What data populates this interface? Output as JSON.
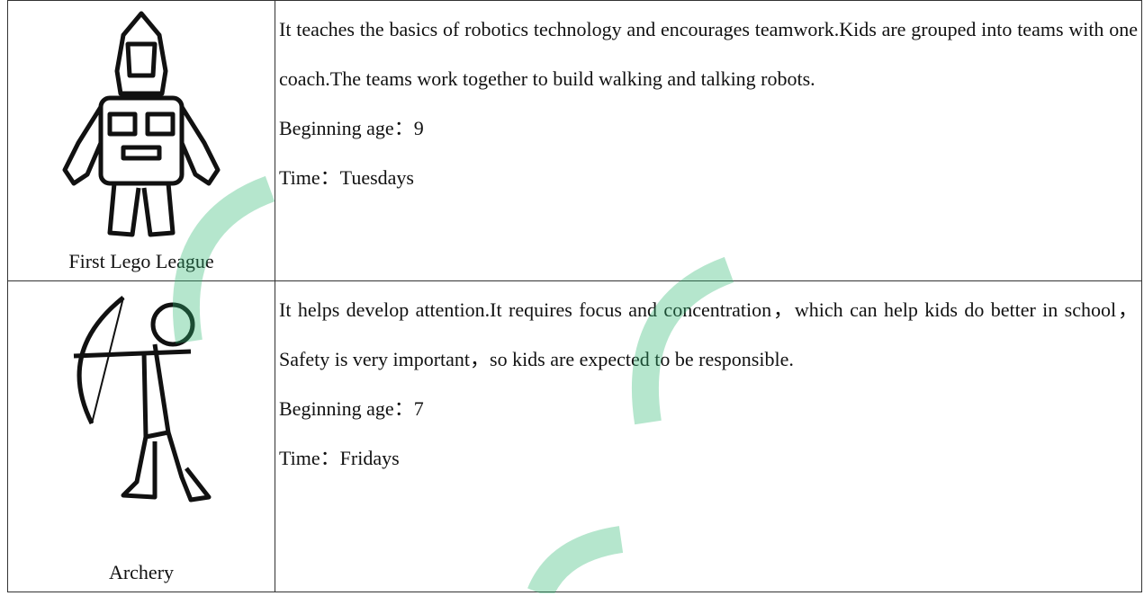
{
  "table": {
    "rows": [
      {
        "caption": "First Lego League",
        "description": "It teaches the basics of robotics technology and encourages teamwork.Kids are grouped into teams with one coach.The teams work together to build walking and talking robots.",
        "age": "Beginning age：9",
        "time": "Time：Tuesdays"
      },
      {
        "caption": "Archery",
        "description": "It helps develop attention.It requires focus and concentration，which can help kids do better in school，Safety is very important，so kids are expected to be responsible.",
        "age": "Beginning age：7",
        "time": "Time：Fridays"
      }
    ]
  }
}
